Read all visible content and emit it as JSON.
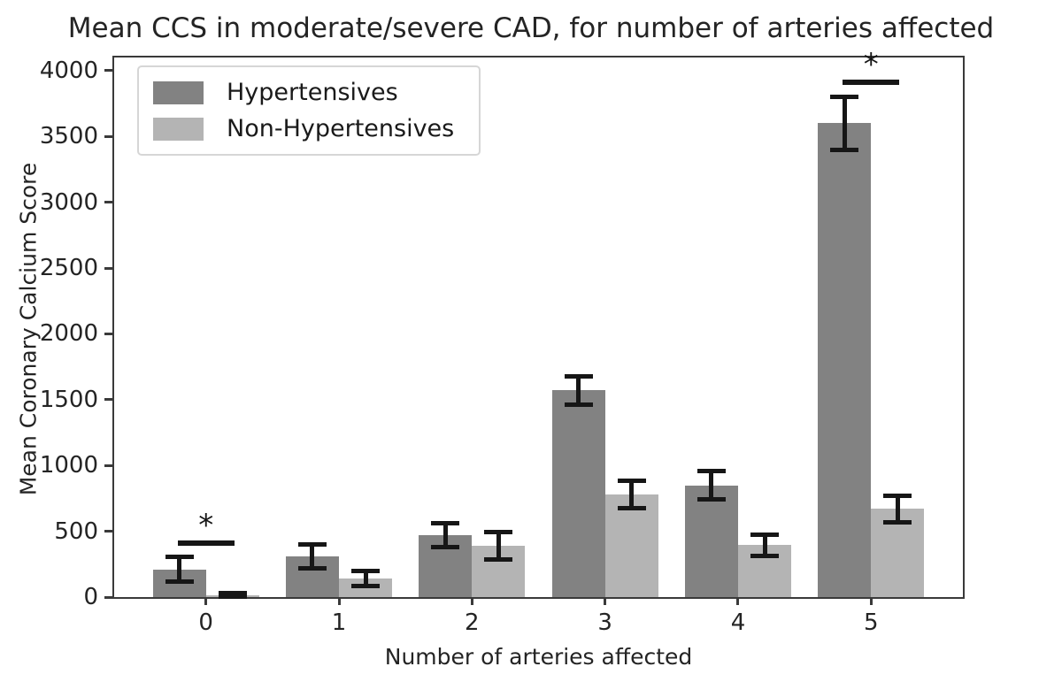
{
  "figure": {
    "background": "#ffffff",
    "text_color": "#242424",
    "spine_color": "#3a3a3a"
  },
  "chart_data": {
    "type": "bar",
    "title": "Mean CCS in moderate/severe CAD, for number of arteries affected",
    "xlabel": "Number of arteries affected",
    "ylabel": "Mean Coronary Calcium Score",
    "categories": [
      "0",
      "1",
      "2",
      "3",
      "4",
      "5"
    ],
    "series": [
      {
        "name": "Hypertensives",
        "color": "#828282",
        "values": [
          210,
          310,
          470,
          1570,
          850,
          3600
        ],
        "errors": [
          95,
          90,
          90,
          110,
          105,
          200
        ]
      },
      {
        "name": "Non-Hypertensives",
        "color": "#b4b4b4",
        "values": [
          15,
          140,
          390,
          780,
          395,
          670
        ],
        "errors": [
          12,
          55,
          105,
          105,
          80,
          100
        ]
      }
    ],
    "yticks": [
      0,
      500,
      1000,
      1500,
      2000,
      2500,
      3000,
      3500,
      4000
    ],
    "ylim": [
      0,
      4100
    ],
    "bar_width_units": 0.4,
    "error_bar_color": "#161616",
    "grid": false,
    "legend_position": "upper left",
    "significance_markers": [
      {
        "group": 0,
        "marker": "*",
        "line_y": 430
      },
      {
        "group": 5,
        "marker": "*",
        "line_y": 3930
      }
    ]
  }
}
